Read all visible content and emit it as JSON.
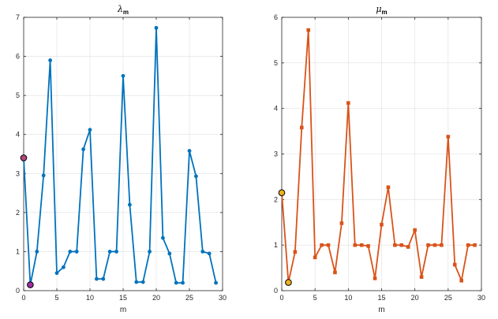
{
  "chart_data": [
    {
      "type": "line",
      "title": "λ",
      "title_subscript": "m",
      "xlabel": "m",
      "ylabel": "",
      "xlim": [
        0,
        30
      ],
      "ylim": [
        0,
        7
      ],
      "xticks": [
        "0",
        "5",
        "10",
        "15",
        "20",
        "25",
        "30"
      ],
      "yticks": [
        "0",
        "1",
        "2",
        "3",
        "4",
        "5",
        "6",
        "7"
      ],
      "grid": true,
      "color": "#0072BD",
      "marker": "circle",
      "x": [
        0,
        1,
        2,
        3,
        4,
        5,
        6,
        7,
        8,
        9,
        10,
        11,
        12,
        13,
        14,
        15,
        16,
        17,
        18,
        19,
        20,
        21,
        22,
        23,
        24,
        25,
        26,
        27,
        28,
        29
      ],
      "values": [
        3.4,
        0.15,
        1.0,
        2.95,
        5.9,
        0.45,
        0.6,
        1.0,
        1.0,
        3.62,
        4.12,
        0.3,
        0.3,
        1.0,
        1.0,
        5.5,
        2.2,
        0.22,
        0.22,
        1.0,
        6.73,
        1.35,
        0.95,
        0.2,
        0.2,
        3.58,
        2.93,
        1.0,
        0.95,
        0.2
      ],
      "highlights": [
        {
          "x": 0,
          "y": 3.4,
          "color": "#B0477B"
        },
        {
          "x": 1,
          "y": 0.15,
          "color": "#9E2FA0"
        }
      ]
    },
    {
      "type": "line",
      "title": "μ",
      "title_subscript": "m",
      "xlabel": "m",
      "ylabel": "",
      "xlim": [
        0,
        30
      ],
      "ylim": [
        0,
        6
      ],
      "xticks": [
        "0",
        "5",
        "10",
        "15",
        "20",
        "25",
        "30"
      ],
      "yticks": [
        "0",
        "1",
        "2",
        "3",
        "4",
        "5",
        "6"
      ],
      "grid": true,
      "color": "#D95319",
      "marker": "square",
      "x": [
        0,
        1,
        2,
        3,
        4,
        5,
        6,
        7,
        8,
        9,
        10,
        11,
        12,
        13,
        14,
        15,
        16,
        17,
        18,
        19,
        20,
        21,
        22,
        23,
        24,
        25,
        26,
        27,
        28,
        29
      ],
      "values": [
        2.15,
        0.18,
        0.85,
        3.58,
        5.72,
        0.73,
        1.0,
        1.0,
        0.4,
        1.48,
        4.12,
        1.0,
        1.0,
        0.98,
        0.27,
        1.45,
        2.27,
        1.0,
        1.0,
        0.96,
        1.33,
        0.3,
        1.0,
        1.0,
        1.0,
        3.38,
        0.57,
        0.22,
        1.0,
        1.0
      ],
      "highlights": [
        {
          "x": 0,
          "y": 2.15,
          "color": "#EDB120"
        },
        {
          "x": 1,
          "y": 0.18,
          "color": "#EDB120"
        }
      ]
    }
  ]
}
